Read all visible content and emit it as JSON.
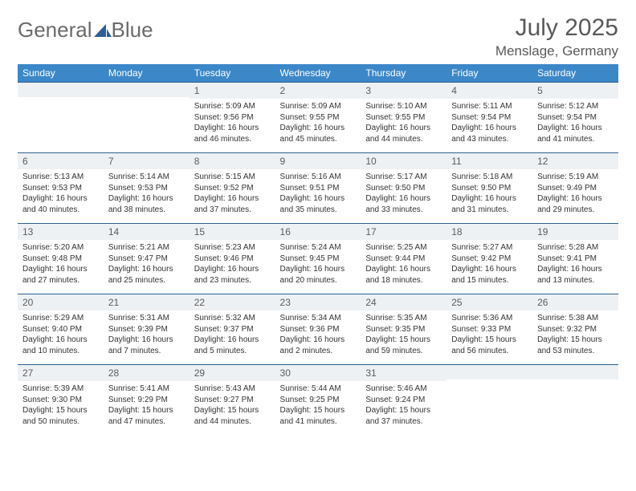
{
  "logo": {
    "text1": "General",
    "text2": "Blue"
  },
  "title": "July 2025",
  "location": "Menslage, Germany",
  "colors": {
    "header_bg": "#3b87c8",
    "header_text": "#ffffff",
    "daynum_bg": "#eef1f4",
    "cell_border": "#2f5f8f",
    "title_color": "#595959",
    "logo_gray": "#6b6b6b",
    "logo_blue": "#2f5f97",
    "body_text": "#333333"
  },
  "weekdays": [
    "Sunday",
    "Monday",
    "Tuesday",
    "Wednesday",
    "Thursday",
    "Friday",
    "Saturday"
  ],
  "weeks": [
    [
      {
        "day": "",
        "sunrise": "",
        "sunset": "",
        "daylight": ""
      },
      {
        "day": "",
        "sunrise": "",
        "sunset": "",
        "daylight": ""
      },
      {
        "day": "1",
        "sunrise": "Sunrise: 5:09 AM",
        "sunset": "Sunset: 9:56 PM",
        "daylight": "Daylight: 16 hours and 46 minutes."
      },
      {
        "day": "2",
        "sunrise": "Sunrise: 5:09 AM",
        "sunset": "Sunset: 9:55 PM",
        "daylight": "Daylight: 16 hours and 45 minutes."
      },
      {
        "day": "3",
        "sunrise": "Sunrise: 5:10 AM",
        "sunset": "Sunset: 9:55 PM",
        "daylight": "Daylight: 16 hours and 44 minutes."
      },
      {
        "day": "4",
        "sunrise": "Sunrise: 5:11 AM",
        "sunset": "Sunset: 9:54 PM",
        "daylight": "Daylight: 16 hours and 43 minutes."
      },
      {
        "day": "5",
        "sunrise": "Sunrise: 5:12 AM",
        "sunset": "Sunset: 9:54 PM",
        "daylight": "Daylight: 16 hours and 41 minutes."
      }
    ],
    [
      {
        "day": "6",
        "sunrise": "Sunrise: 5:13 AM",
        "sunset": "Sunset: 9:53 PM",
        "daylight": "Daylight: 16 hours and 40 minutes."
      },
      {
        "day": "7",
        "sunrise": "Sunrise: 5:14 AM",
        "sunset": "Sunset: 9:53 PM",
        "daylight": "Daylight: 16 hours and 38 minutes."
      },
      {
        "day": "8",
        "sunrise": "Sunrise: 5:15 AM",
        "sunset": "Sunset: 9:52 PM",
        "daylight": "Daylight: 16 hours and 37 minutes."
      },
      {
        "day": "9",
        "sunrise": "Sunrise: 5:16 AM",
        "sunset": "Sunset: 9:51 PM",
        "daylight": "Daylight: 16 hours and 35 minutes."
      },
      {
        "day": "10",
        "sunrise": "Sunrise: 5:17 AM",
        "sunset": "Sunset: 9:50 PM",
        "daylight": "Daylight: 16 hours and 33 minutes."
      },
      {
        "day": "11",
        "sunrise": "Sunrise: 5:18 AM",
        "sunset": "Sunset: 9:50 PM",
        "daylight": "Daylight: 16 hours and 31 minutes."
      },
      {
        "day": "12",
        "sunrise": "Sunrise: 5:19 AM",
        "sunset": "Sunset: 9:49 PM",
        "daylight": "Daylight: 16 hours and 29 minutes."
      }
    ],
    [
      {
        "day": "13",
        "sunrise": "Sunrise: 5:20 AM",
        "sunset": "Sunset: 9:48 PM",
        "daylight": "Daylight: 16 hours and 27 minutes."
      },
      {
        "day": "14",
        "sunrise": "Sunrise: 5:21 AM",
        "sunset": "Sunset: 9:47 PM",
        "daylight": "Daylight: 16 hours and 25 minutes."
      },
      {
        "day": "15",
        "sunrise": "Sunrise: 5:23 AM",
        "sunset": "Sunset: 9:46 PM",
        "daylight": "Daylight: 16 hours and 23 minutes."
      },
      {
        "day": "16",
        "sunrise": "Sunrise: 5:24 AM",
        "sunset": "Sunset: 9:45 PM",
        "daylight": "Daylight: 16 hours and 20 minutes."
      },
      {
        "day": "17",
        "sunrise": "Sunrise: 5:25 AM",
        "sunset": "Sunset: 9:44 PM",
        "daylight": "Daylight: 16 hours and 18 minutes."
      },
      {
        "day": "18",
        "sunrise": "Sunrise: 5:27 AM",
        "sunset": "Sunset: 9:42 PM",
        "daylight": "Daylight: 16 hours and 15 minutes."
      },
      {
        "day": "19",
        "sunrise": "Sunrise: 5:28 AM",
        "sunset": "Sunset: 9:41 PM",
        "daylight": "Daylight: 16 hours and 13 minutes."
      }
    ],
    [
      {
        "day": "20",
        "sunrise": "Sunrise: 5:29 AM",
        "sunset": "Sunset: 9:40 PM",
        "daylight": "Daylight: 16 hours and 10 minutes."
      },
      {
        "day": "21",
        "sunrise": "Sunrise: 5:31 AM",
        "sunset": "Sunset: 9:39 PM",
        "daylight": "Daylight: 16 hours and 7 minutes."
      },
      {
        "day": "22",
        "sunrise": "Sunrise: 5:32 AM",
        "sunset": "Sunset: 9:37 PM",
        "daylight": "Daylight: 16 hours and 5 minutes."
      },
      {
        "day": "23",
        "sunrise": "Sunrise: 5:34 AM",
        "sunset": "Sunset: 9:36 PM",
        "daylight": "Daylight: 16 hours and 2 minutes."
      },
      {
        "day": "24",
        "sunrise": "Sunrise: 5:35 AM",
        "sunset": "Sunset: 9:35 PM",
        "daylight": "Daylight: 15 hours and 59 minutes."
      },
      {
        "day": "25",
        "sunrise": "Sunrise: 5:36 AM",
        "sunset": "Sunset: 9:33 PM",
        "daylight": "Daylight: 15 hours and 56 minutes."
      },
      {
        "day": "26",
        "sunrise": "Sunrise: 5:38 AM",
        "sunset": "Sunset: 9:32 PM",
        "daylight": "Daylight: 15 hours and 53 minutes."
      }
    ],
    [
      {
        "day": "27",
        "sunrise": "Sunrise: 5:39 AM",
        "sunset": "Sunset: 9:30 PM",
        "daylight": "Daylight: 15 hours and 50 minutes."
      },
      {
        "day": "28",
        "sunrise": "Sunrise: 5:41 AM",
        "sunset": "Sunset: 9:29 PM",
        "daylight": "Daylight: 15 hours and 47 minutes."
      },
      {
        "day": "29",
        "sunrise": "Sunrise: 5:43 AM",
        "sunset": "Sunset: 9:27 PM",
        "daylight": "Daylight: 15 hours and 44 minutes."
      },
      {
        "day": "30",
        "sunrise": "Sunrise: 5:44 AM",
        "sunset": "Sunset: 9:25 PM",
        "daylight": "Daylight: 15 hours and 41 minutes."
      },
      {
        "day": "31",
        "sunrise": "Sunrise: 5:46 AM",
        "sunset": "Sunset: 9:24 PM",
        "daylight": "Daylight: 15 hours and 37 minutes."
      },
      {
        "day": "",
        "sunrise": "",
        "sunset": "",
        "daylight": ""
      },
      {
        "day": "",
        "sunrise": "",
        "sunset": "",
        "daylight": ""
      }
    ]
  ]
}
